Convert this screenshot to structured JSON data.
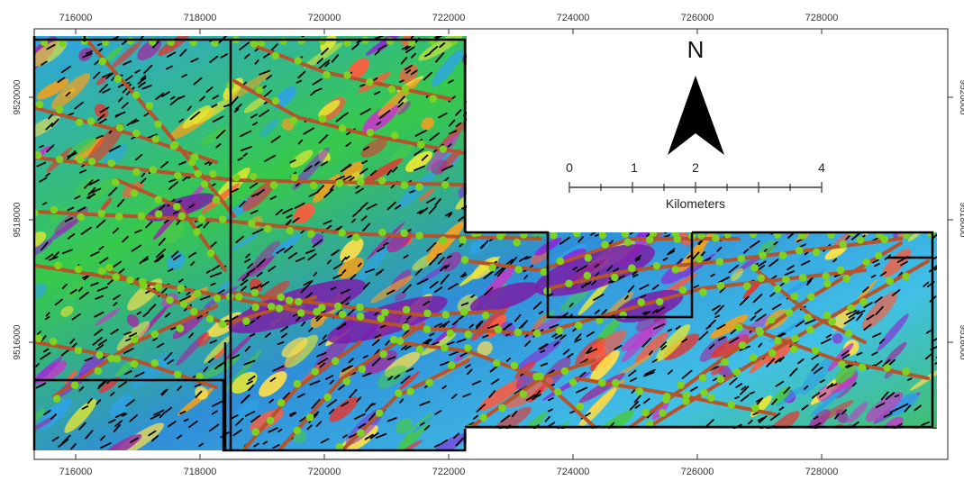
{
  "map": {
    "x_ticks": [
      "716000",
      "718000",
      "720000",
      "722000",
      "724000",
      "726000",
      "728000"
    ],
    "y_ticks": [
      "9520000",
      "9518000",
      "9516000"
    ],
    "north_label": "N",
    "scale_bar": {
      "labels": [
        "0",
        "1",
        "2",
        "4"
      ],
      "unit": "Kilometers"
    },
    "colors": {
      "frame": "#000000",
      "fault_lines": "#b5532b",
      "points": "#7ed321",
      "lineaments": "#000000"
    }
  }
}
